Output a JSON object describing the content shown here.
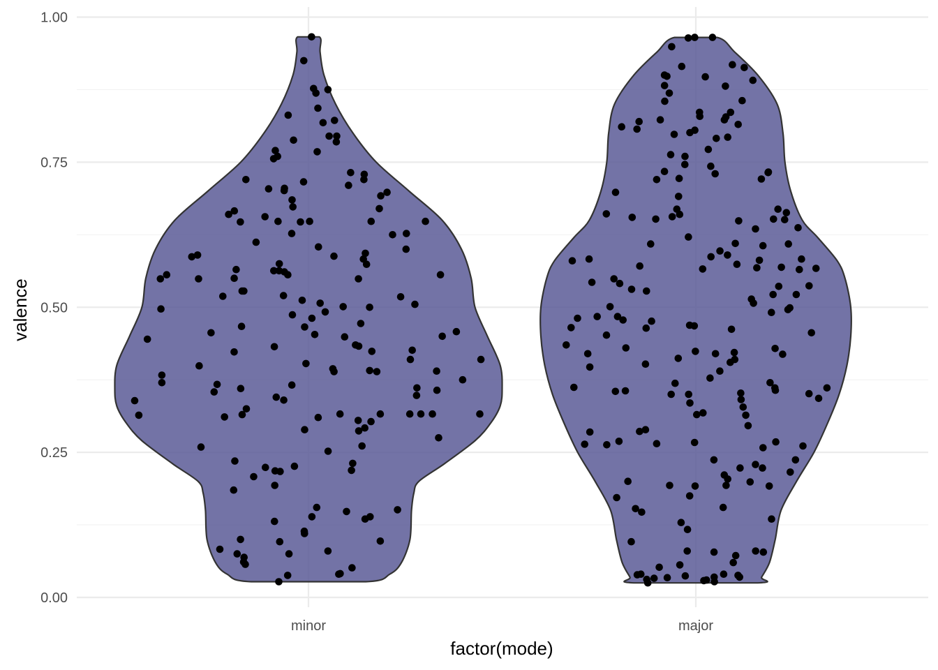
{
  "chart_data": {
    "type": "violin",
    "xlabel": "factor(mode)",
    "ylabel": "valence",
    "categories": [
      "minor",
      "major"
    ],
    "ylim": [
      0,
      1
    ],
    "y_ticks": [
      "0.00",
      "0.25",
      "0.50",
      "0.75",
      "1.00"
    ],
    "y_tick_values": [
      0,
      0.25,
      0.5,
      0.75,
      1.0
    ],
    "grid": true,
    "fill_color": "#5a5a96",
    "outline_color": "#333333",
    "point_color": "#000000",
    "violins": [
      {
        "category": "minor",
        "range": [
          0.027,
          0.966
        ],
        "density_profile": [
          [
            0.027,
            0.148
          ],
          [
            0.04,
            0.21
          ],
          [
            0.06,
            0.24
          ],
          [
            0.1,
            0.262
          ],
          [
            0.15,
            0.266
          ],
          [
            0.18,
            0.272
          ],
          [
            0.2,
            0.285
          ],
          [
            0.23,
            0.35
          ],
          [
            0.27,
            0.43
          ],
          [
            0.3,
            0.47
          ],
          [
            0.33,
            0.495
          ],
          [
            0.36,
            0.5
          ],
          [
            0.4,
            0.495
          ],
          [
            0.45,
            0.462
          ],
          [
            0.5,
            0.43
          ],
          [
            0.55,
            0.42
          ],
          [
            0.6,
            0.395
          ],
          [
            0.65,
            0.345
          ],
          [
            0.7,
            0.26
          ],
          [
            0.75,
            0.175
          ],
          [
            0.8,
            0.115
          ],
          [
            0.85,
            0.07
          ],
          [
            0.9,
            0.04
          ],
          [
            0.94,
            0.03
          ],
          [
            0.966,
            0.028
          ]
        ]
      },
      {
        "category": "major",
        "range": [
          0.025,
          0.965
        ],
        "density_profile": [
          [
            0.025,
            0.16
          ],
          [
            0.035,
            0.17
          ],
          [
            0.06,
            0.19
          ],
          [
            0.1,
            0.205
          ],
          [
            0.15,
            0.22
          ],
          [
            0.2,
            0.26
          ],
          [
            0.25,
            0.305
          ],
          [
            0.3,
            0.34
          ],
          [
            0.35,
            0.37
          ],
          [
            0.4,
            0.39
          ],
          [
            0.45,
            0.4
          ],
          [
            0.5,
            0.4
          ],
          [
            0.55,
            0.385
          ],
          [
            0.58,
            0.365
          ],
          [
            0.62,
            0.315
          ],
          [
            0.65,
            0.275
          ],
          [
            0.7,
            0.245
          ],
          [
            0.75,
            0.23
          ],
          [
            0.8,
            0.225
          ],
          [
            0.85,
            0.21
          ],
          [
            0.9,
            0.16
          ],
          [
            0.94,
            0.1
          ],
          [
            0.965,
            0.055
          ]
        ]
      }
    ],
    "points": [
      {
        "category": "minor",
        "values": [
          0.966,
          0.925,
          0.877,
          0.875,
          0.869,
          0.843,
          0.831,
          0.822,
          0.818,
          0.795,
          0.795,
          0.788,
          0.785,
          0.77,
          0.768,
          0.76,
          0.756,
          0.732,
          0.729,
          0.72,
          0.72,
          0.716,
          0.71,
          0.705,
          0.704,
          0.701,
          0.698,
          0.692,
          0.685,
          0.673,
          0.67,
          0.666,
          0.66,
          0.656,
          0.648,
          0.648,
          0.648,
          0.647,
          0.648,
          0.647,
          0.627,
          0.627,
          0.625,
          0.612,
          0.604,
          0.6,
          0.593,
          0.59,
          0.588,
          0.587,
          0.583,
          0.575,
          0.574,
          0.565,
          0.563,
          0.563,
          0.561,
          0.556,
          0.556,
          0.556,
          0.55,
          0.549,
          0.549,
          0.549,
          0.528,
          0.528,
          0.52,
          0.519,
          0.518,
          0.512,
          0.507,
          0.505,
          0.501,
          0.5,
          0.497,
          0.492,
          0.487,
          0.481,
          0.472,
          0.467,
          0.466,
          0.458,
          0.456,
          0.453,
          0.45,
          0.449,
          0.445,
          0.435,
          0.433,
          0.432,
          0.426,
          0.424,
          0.423,
          0.41,
          0.41,
          0.403,
          0.399,
          0.394,
          0.391,
          0.39,
          0.389,
          0.389,
          0.383,
          0.375,
          0.37,
          0.367,
          0.366,
          0.361,
          0.36,
          0.357,
          0.354,
          0.348,
          0.345,
          0.34,
          0.339,
          0.325,
          0.316,
          0.316,
          0.316,
          0.316,
          0.316,
          0.316,
          0.315,
          0.314,
          0.311,
          0.31,
          0.305,
          0.303,
          0.292,
          0.289,
          0.287,
          0.275,
          0.261,
          0.259,
          0.252,
          0.235,
          0.231,
          0.226,
          0.224,
          0.219,
          0.218,
          0.217,
          0.208,
          0.193,
          0.185,
          0.155,
          0.151,
          0.148,
          0.139,
          0.139,
          0.135,
          0.131,
          0.114,
          0.11,
          0.1,
          0.097,
          0.096,
          0.083,
          0.08,
          0.075,
          0.075,
          0.069,
          0.061,
          0.057,
          0.051,
          0.041,
          0.04,
          0.038,
          0.027
        ]
      },
      {
        "category": "major",
        "values": [
          0.965,
          0.965,
          0.964,
          0.949,
          0.918,
          0.915,
          0.913,
          0.9,
          0.898,
          0.897,
          0.891,
          0.882,
          0.881,
          0.869,
          0.856,
          0.855,
          0.836,
          0.836,
          0.829,
          0.828,
          0.823,
          0.823,
          0.82,
          0.815,
          0.811,
          0.807,
          0.805,
          0.801,
          0.798,
          0.793,
          0.791,
          0.772,
          0.763,
          0.76,
          0.746,
          0.743,
          0.734,
          0.733,
          0.732,
          0.73,
          0.722,
          0.721,
          0.72,
          0.698,
          0.691,
          0.669,
          0.669,
          0.663,
          0.661,
          0.66,
          0.656,
          0.655,
          0.652,
          0.652,
          0.651,
          0.649,
          0.637,
          0.635,
          0.621,
          0.61,
          0.609,
          0.609,
          0.606,
          0.597,
          0.59,
          0.587,
          0.583,
          0.583,
          0.581,
          0.58,
          0.574,
          0.571,
          0.569,
          0.568,
          0.567,
          0.566,
          0.565,
          0.549,
          0.543,
          0.541,
          0.537,
          0.536,
          0.531,
          0.528,
          0.522,
          0.522,
          0.514,
          0.507,
          0.501,
          0.499,
          0.496,
          0.491,
          0.484,
          0.484,
          0.481,
          0.478,
          0.476,
          0.469,
          0.468,
          0.465,
          0.464,
          0.462,
          0.456,
          0.452,
          0.435,
          0.43,
          0.429,
          0.424,
          0.422,
          0.42,
          0.42,
          0.419,
          0.412,
          0.41,
          0.405,
          0.402,
          0.397,
          0.39,
          0.378,
          0.37,
          0.369,
          0.362,
          0.361,
          0.361,
          0.357,
          0.356,
          0.355,
          0.352,
          0.351,
          0.35,
          0.35,
          0.343,
          0.341,
          0.335,
          0.328,
          0.318,
          0.315,
          0.314,
          0.296,
          0.289,
          0.286,
          0.285,
          0.269,
          0.268,
          0.267,
          0.265,
          0.264,
          0.263,
          0.261,
          0.258,
          0.237,
          0.237,
          0.229,
          0.223,
          0.223,
          0.216,
          0.211,
          0.204,
          0.2,
          0.199,
          0.193,
          0.193,
          0.192,
          0.192,
          0.175,
          0.172,
          0.155,
          0.153,
          0.147,
          0.135,
          0.129,
          0.117,
          0.096,
          0.08,
          0.08,
          0.078,
          0.078,
          0.072,
          0.06,
          0.056,
          0.052,
          0.04,
          0.04,
          0.039,
          0.038,
          0.037,
          0.035,
          0.035,
          0.034,
          0.033,
          0.031,
          0.03,
          0.029,
          0.027,
          0.025
        ]
      }
    ]
  }
}
